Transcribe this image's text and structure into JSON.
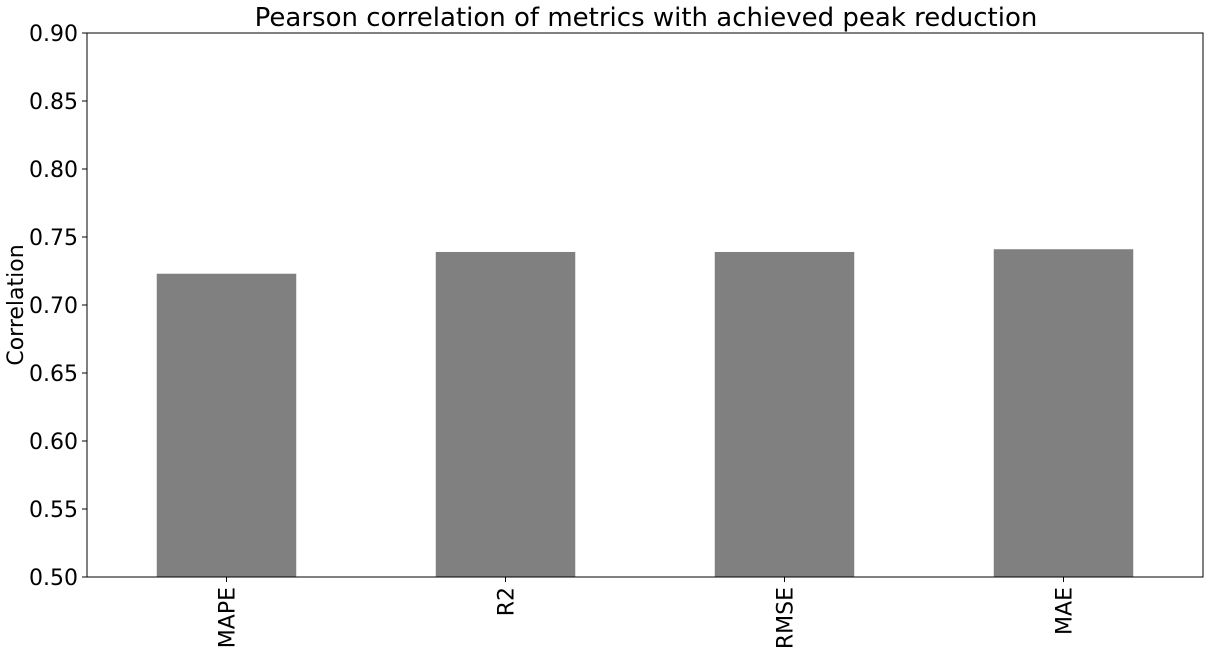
{
  "chart_data": {
    "type": "bar",
    "title": "Pearson correlation of metrics with achieved peak reduction",
    "xlabel": "",
    "ylabel": "Correlation",
    "categories": [
      "MAPE",
      "R2",
      "RMSE",
      "MAE"
    ],
    "values": [
      0.723,
      0.739,
      0.739,
      0.741
    ],
    "ylim": [
      0.5,
      0.9
    ],
    "yticks": [
      0.5,
      0.55,
      0.6,
      0.65,
      0.7,
      0.75,
      0.8,
      0.85,
      0.9
    ],
    "ytick_labels": [
      "0.50",
      "0.55",
      "0.60",
      "0.65",
      "0.70",
      "0.75",
      "0.80",
      "0.85",
      "0.90"
    ],
    "bar_color": "#808080",
    "grid": false,
    "legend": "none",
    "xtick_rotation": "vertical"
  }
}
